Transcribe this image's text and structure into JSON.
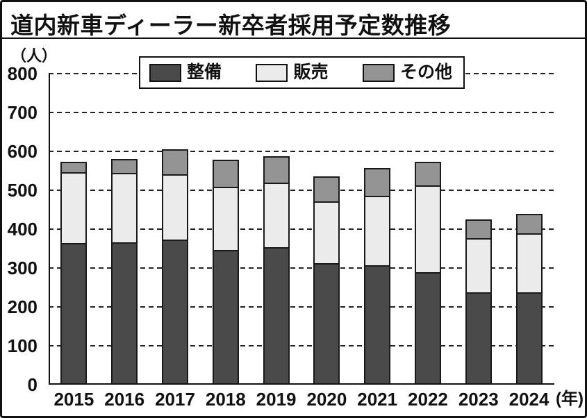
{
  "chart_data": {
    "type": "bar",
    "stacked": true,
    "title": "道内新車ディーラー新卒者採用予定数推移",
    "y_axis_unit": "（人）",
    "x_axis_suffix": "(年)",
    "categories": [
      "2015",
      "2016",
      "2017",
      "2018",
      "2019",
      "2020",
      "2021",
      "2022",
      "2023",
      "2024"
    ],
    "series": [
      {
        "name": "整備",
        "color": "#4a4a4a",
        "values": [
          365,
          366,
          373,
          346,
          353,
          313,
          308,
          289,
          238,
          238
        ]
      },
      {
        "name": "販売",
        "color": "#ebebeb",
        "values": [
          185,
          182,
          171,
          166,
          170,
          162,
          182,
          227,
          143,
          155
        ]
      },
      {
        "name": "その他",
        "color": "#949494",
        "values": [
          31,
          39,
          67,
          73,
          71,
          67,
          75,
          65,
          51,
          54
        ]
      }
    ],
    "totals": [
      581,
      587,
      611,
      585,
      594,
      542,
      565,
      581,
      432,
      447
    ],
    "ylim": [
      0,
      800
    ],
    "yticks": [
      0,
      100,
      200,
      300,
      400,
      500,
      600,
      700,
      800
    ],
    "grid": "horizontal-dashed",
    "legend_position": "top-inside",
    "segment_border_color": "#1a1a1a"
  }
}
